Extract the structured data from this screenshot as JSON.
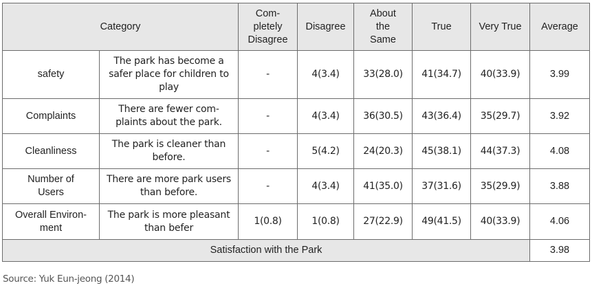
{
  "header": {
    "category": "Category",
    "completely_disagree": [
      "Com-",
      "pletely",
      "Disagree"
    ],
    "disagree": "Disagree",
    "about_same": [
      "About",
      "the",
      "Same"
    ],
    "true": "True",
    "very_true": "Very True",
    "average": "Average"
  },
  "rows": [
    {
      "category": [
        "safety"
      ],
      "statement": [
        "The park has become a",
        "safer place for children to",
        "play"
      ],
      "completely_disagree": "-",
      "disagree": "4(3.4)",
      "about_same": "33(28.0)",
      "true": "41(34.7)",
      "very_true": "40(33.9)",
      "average": "3.99"
    },
    {
      "category": [
        "Complaints"
      ],
      "statement": [
        "There are fewer com-",
        "plaints about the park."
      ],
      "completely_disagree": "-",
      "disagree": "4(3.4)",
      "about_same": "36(30.5)",
      "true": "43(36.4)",
      "very_true": "35(29.7)",
      "average": "3.92"
    },
    {
      "category": [
        "Cleanliness"
      ],
      "statement": [
        "The park is cleaner than",
        "before."
      ],
      "completely_disagree": "-",
      "disagree": "5(4.2)",
      "about_same": "24(20.3)",
      "true": "45(38.1)",
      "very_true": "44(37.3)",
      "average": "4.08"
    },
    {
      "category": [
        "Number of",
        "Users"
      ],
      "statement": [
        "There are more park users",
        "than before."
      ],
      "completely_disagree": "-",
      "disagree": "4(3.4)",
      "about_same": "41(35.0)",
      "true": "37(31.6)",
      "very_true": "35(29.9)",
      "average": "3.88"
    },
    {
      "category": [
        "Overall Environ-",
        "ment"
      ],
      "statement": [
        "The park is more pleasant",
        "than befer"
      ],
      "completely_disagree": "1(0.8)",
      "disagree": "1(0.8)",
      "about_same": "27(22.9)",
      "true": "49(41.5)",
      "very_true": "40(33.9)",
      "average": "4.06"
    }
  ],
  "summary": {
    "label": "Satisfaction with  the Park",
    "average": "3.98"
  },
  "source": "Source: Yuk Eun-jeong (2014)"
}
